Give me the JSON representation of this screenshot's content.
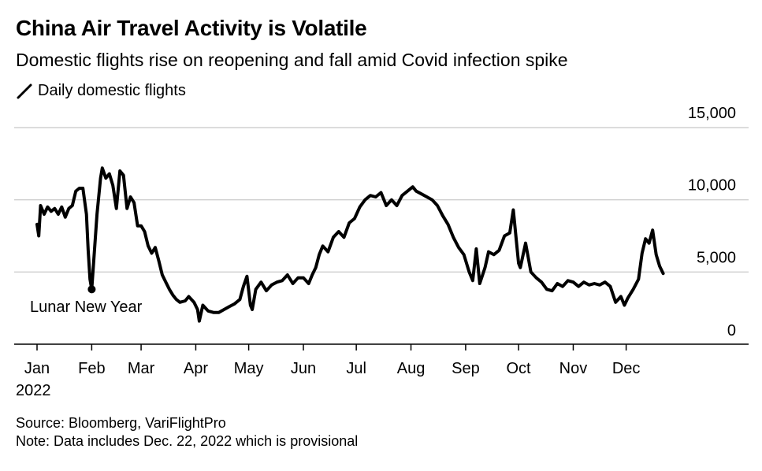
{
  "title": "China Air Travel Activity is Volatile",
  "subtitle": "Domestic flights rise on reopening and fall amid Covid infection spike",
  "legend": {
    "label": "Daily domestic flights",
    "color": "#000000"
  },
  "source": "Source: Bloomberg, VariFlightPro",
  "note": "Note: Data includes Dec. 22, 2022 which is provisional",
  "chart_data": {
    "type": "line",
    "year": "2022",
    "xlabel": "",
    "ylabel": "",
    "ylim": [
      0,
      15000
    ],
    "y_ticks": [
      {
        "value": 0,
        "label": "0"
      },
      {
        "value": 5000,
        "label": "5,000"
      },
      {
        "value": 10000,
        "label": "10,000"
      },
      {
        "value": 15000,
        "label": "15,000"
      }
    ],
    "x_ticks": [
      "Jan",
      "Feb",
      "Mar",
      "Apr",
      "May",
      "Jun",
      "Jul",
      "Aug",
      "Sep",
      "Oct",
      "Nov",
      "Dec"
    ],
    "grid": true,
    "annotation": {
      "date": "2022-02-01",
      "value": 3800,
      "label": "Lunar New Year"
    },
    "series": [
      {
        "name": "Daily domestic flights",
        "color": "#000000",
        "points": [
          [
            "2022-01-01",
            8300
          ],
          [
            "2022-01-02",
            7500
          ],
          [
            "2022-01-03",
            9600
          ],
          [
            "2022-01-05",
            9000
          ],
          [
            "2022-01-07",
            9500
          ],
          [
            "2022-01-09",
            9200
          ],
          [
            "2022-01-11",
            9400
          ],
          [
            "2022-01-13",
            9000
          ],
          [
            "2022-01-15",
            9500
          ],
          [
            "2022-01-17",
            8800
          ],
          [
            "2022-01-19",
            9400
          ],
          [
            "2022-01-21",
            9600
          ],
          [
            "2022-01-23",
            10600
          ],
          [
            "2022-01-25",
            10800
          ],
          [
            "2022-01-27",
            10800
          ],
          [
            "2022-01-29",
            9000
          ],
          [
            "2022-01-30",
            6500
          ],
          [
            "2022-01-31",
            4500
          ],
          [
            "2022-02-01",
            3800
          ],
          [
            "2022-02-02",
            5500
          ],
          [
            "2022-02-04",
            9000
          ],
          [
            "2022-02-06",
            11500
          ],
          [
            "2022-02-07",
            12200
          ],
          [
            "2022-02-09",
            11500
          ],
          [
            "2022-02-11",
            11800
          ],
          [
            "2022-02-13",
            11000
          ],
          [
            "2022-02-15",
            9400
          ],
          [
            "2022-02-17",
            12000
          ],
          [
            "2022-02-19",
            11700
          ],
          [
            "2022-02-21",
            9400
          ],
          [
            "2022-02-23",
            10200
          ],
          [
            "2022-02-25",
            9800
          ],
          [
            "2022-02-27",
            8200
          ],
          [
            "2022-03-01",
            8200
          ],
          [
            "2022-03-03",
            7800
          ],
          [
            "2022-03-05",
            6800
          ],
          [
            "2022-03-07",
            6300
          ],
          [
            "2022-03-09",
            6700
          ],
          [
            "2022-03-11",
            5800
          ],
          [
            "2022-03-13",
            4800
          ],
          [
            "2022-03-15",
            4300
          ],
          [
            "2022-03-17",
            3800
          ],
          [
            "2022-03-19",
            3400
          ],
          [
            "2022-03-21",
            3100
          ],
          [
            "2022-03-23",
            2900
          ],
          [
            "2022-03-26",
            3000
          ],
          [
            "2022-03-28",
            3300
          ],
          [
            "2022-03-31",
            2900
          ],
          [
            "2022-04-02",
            2400
          ],
          [
            "2022-04-03",
            1600
          ],
          [
            "2022-04-05",
            2700
          ],
          [
            "2022-04-08",
            2300
          ],
          [
            "2022-04-11",
            2200
          ],
          [
            "2022-04-14",
            2200
          ],
          [
            "2022-04-17",
            2400
          ],
          [
            "2022-04-20",
            2600
          ],
          [
            "2022-04-23",
            2800
          ],
          [
            "2022-04-26",
            3100
          ],
          [
            "2022-04-28",
            4000
          ],
          [
            "2022-04-30",
            4700
          ],
          [
            "2022-05-02",
            2700
          ],
          [
            "2022-05-03",
            2400
          ],
          [
            "2022-05-05",
            3800
          ],
          [
            "2022-05-08",
            4300
          ],
          [
            "2022-05-11",
            3700
          ],
          [
            "2022-05-14",
            4100
          ],
          [
            "2022-05-17",
            4300
          ],
          [
            "2022-05-20",
            4400
          ],
          [
            "2022-05-23",
            4800
          ],
          [
            "2022-05-26",
            4200
          ],
          [
            "2022-05-29",
            4600
          ],
          [
            "2022-06-01",
            4600
          ],
          [
            "2022-06-04",
            4200
          ],
          [
            "2022-06-06",
            4800
          ],
          [
            "2022-06-08",
            5300
          ],
          [
            "2022-06-10",
            6200
          ],
          [
            "2022-06-12",
            6800
          ],
          [
            "2022-06-15",
            6400
          ],
          [
            "2022-06-18",
            7400
          ],
          [
            "2022-06-21",
            7800
          ],
          [
            "2022-06-24",
            7400
          ],
          [
            "2022-06-27",
            8400
          ],
          [
            "2022-06-30",
            8700
          ],
          [
            "2022-07-03",
            9500
          ],
          [
            "2022-07-06",
            10000
          ],
          [
            "2022-07-09",
            10300
          ],
          [
            "2022-07-12",
            10200
          ],
          [
            "2022-07-15",
            10500
          ],
          [
            "2022-07-18",
            9600
          ],
          [
            "2022-07-21",
            10000
          ],
          [
            "2022-07-24",
            9600
          ],
          [
            "2022-07-27",
            10300
          ],
          [
            "2022-07-30",
            10600
          ],
          [
            "2022-08-02",
            10900
          ],
          [
            "2022-08-04",
            10600
          ],
          [
            "2022-08-07",
            10400
          ],
          [
            "2022-08-10",
            10200
          ],
          [
            "2022-08-13",
            10000
          ],
          [
            "2022-08-16",
            9600
          ],
          [
            "2022-08-19",
            8900
          ],
          [
            "2022-08-22",
            8300
          ],
          [
            "2022-08-25",
            7400
          ],
          [
            "2022-08-28",
            6700
          ],
          [
            "2022-08-31",
            6200
          ],
          [
            "2022-09-03",
            5000
          ],
          [
            "2022-09-05",
            4400
          ],
          [
            "2022-09-07",
            6600
          ],
          [
            "2022-09-09",
            4200
          ],
          [
            "2022-09-12",
            5300
          ],
          [
            "2022-09-14",
            6400
          ],
          [
            "2022-09-17",
            6200
          ],
          [
            "2022-09-20",
            6500
          ],
          [
            "2022-09-23",
            7500
          ],
          [
            "2022-09-26",
            7700
          ],
          [
            "2022-09-28",
            9300
          ],
          [
            "2022-10-01",
            5600
          ],
          [
            "2022-10-02",
            5300
          ],
          [
            "2022-10-05",
            7000
          ],
          [
            "2022-10-08",
            5000
          ],
          [
            "2022-10-11",
            4600
          ],
          [
            "2022-10-14",
            4300
          ],
          [
            "2022-10-17",
            3800
          ],
          [
            "2022-10-20",
            3700
          ],
          [
            "2022-10-23",
            4200
          ],
          [
            "2022-10-26",
            4000
          ],
          [
            "2022-10-29",
            4400
          ],
          [
            "2022-11-01",
            4300
          ],
          [
            "2022-11-04",
            4000
          ],
          [
            "2022-11-07",
            4300
          ],
          [
            "2022-11-10",
            4100
          ],
          [
            "2022-11-13",
            4200
          ],
          [
            "2022-11-16",
            4100
          ],
          [
            "2022-11-19",
            4300
          ],
          [
            "2022-11-22",
            4000
          ],
          [
            "2022-11-25",
            2900
          ],
          [
            "2022-11-28",
            3300
          ],
          [
            "2022-11-30",
            2700
          ],
          [
            "2022-12-02",
            3200
          ],
          [
            "2022-12-05",
            3800
          ],
          [
            "2022-12-08",
            4500
          ],
          [
            "2022-12-10",
            6300
          ],
          [
            "2022-12-12",
            7300
          ],
          [
            "2022-12-14",
            7000
          ],
          [
            "2022-12-16",
            7900
          ],
          [
            "2022-12-18",
            6200
          ],
          [
            "2022-12-20",
            5400
          ],
          [
            "2022-12-22",
            4900
          ]
        ]
      }
    ]
  }
}
